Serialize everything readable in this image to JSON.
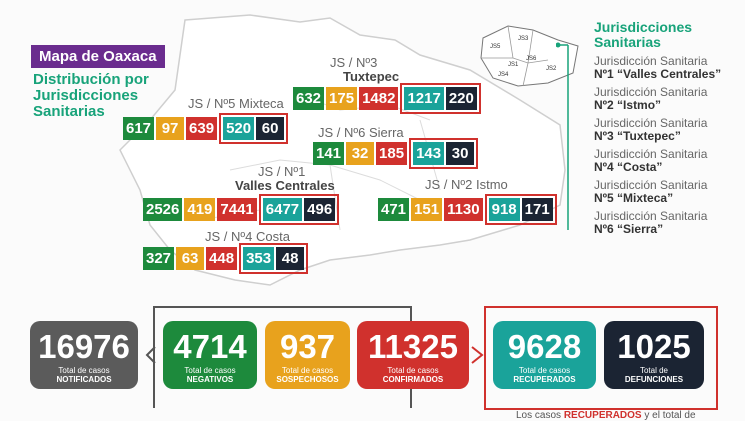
{
  "header": {
    "tag": "Mapa de Oaxaca",
    "subtitle": [
      "Distribución por",
      "Jurisdicciones",
      "Sanitarias"
    ]
  },
  "regions": {
    "mixteca": {
      "label": "JS / Nº5 Mixteca",
      "values": [
        "617",
        "97",
        "639",
        "520",
        "60"
      ]
    },
    "tuxtepec": {
      "label1": "JS / Nº3",
      "label2": "Tuxtepec",
      "values": [
        "632",
        "175",
        "1482",
        "1217",
        "220"
      ]
    },
    "sierra": {
      "label": "JS / Nº6 Sierra",
      "values": [
        "141",
        "32",
        "185",
        "143",
        "30"
      ]
    },
    "valles": {
      "label1": "JS / Nº1",
      "label2": "Valles Centrales",
      "values": [
        "2526",
        "419",
        "7441",
        "6477",
        "496"
      ]
    },
    "istmo": {
      "label": "JS / Nº2 Istmo",
      "values": [
        "471",
        "151",
        "1130",
        "918",
        "171"
      ]
    },
    "costa": {
      "label": "JS / Nº4 Costa",
      "values": [
        "327",
        "63",
        "448",
        "353",
        "48"
      ]
    }
  },
  "minimap": {
    "labels": [
      "JS3",
      "JS5",
      "JS1",
      "JS6",
      "JS4",
      "JS2"
    ]
  },
  "legend": {
    "title": [
      "Jurisdicciones",
      "Sanitarias"
    ],
    "items": [
      {
        "line1": "Jurisdicción Sanitaria",
        "line2": "Nº1 “Valles Centrales”"
      },
      {
        "line1": "Jurisdicción Sanitaria",
        "line2": "Nº2 “Istmo”"
      },
      {
        "line1": "Jurisdicción Sanitaria",
        "line2": "Nº3 “Tuxtepec”"
      },
      {
        "line1": "Jurisdicción Sanitaria",
        "line2": "Nº4 “Costa”"
      },
      {
        "line1": "Jurisdicción Sanitaria",
        "line2": "Nº5 “Mixteca”"
      },
      {
        "line1": "Jurisdicción Sanitaria",
        "line2": "Nº6 “Sierra”"
      }
    ]
  },
  "totals": [
    {
      "value": "16976",
      "line1": "Total de casos",
      "line2": "NOTIFICADOS",
      "color": "#5b5b5b"
    },
    {
      "value": "4714",
      "line1": "Total de casos",
      "line2": "NEGATIVOS",
      "color": "#1d8a3c"
    },
    {
      "value": "937",
      "line1": "Total de casos",
      "line2": "SOSPECHOSOS",
      "color": "#e8a21d"
    },
    {
      "value": "11325",
      "line1": "Total de casos",
      "line2": "CONFIRMADOS",
      "color": "#d0312d"
    },
    {
      "value": "9628",
      "line1": "Total de casos",
      "line2": "RECUPERADOS",
      "color": "#1aa39a"
    },
    {
      "value": "1025",
      "line1": "Total de",
      "line2": "DEFUNCIONES",
      "color": "#1b2433"
    }
  ],
  "footer": {
    "note_start": "Los casos ",
    "note_highlight": "RECUPERADOS",
    "note_end": " y el total de"
  }
}
